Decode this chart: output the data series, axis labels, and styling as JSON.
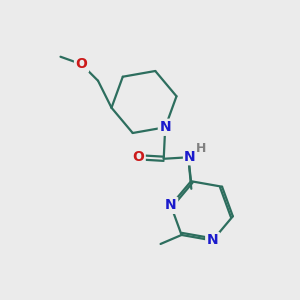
{
  "bg_color": "#ebebeb",
  "bond_color": "#2d6e5e",
  "N_color": "#1a1acc",
  "O_color": "#cc1a1a",
  "H_color": "#808080",
  "bond_width": 1.6,
  "font_size_atom": 10,
  "figsize": [
    3.0,
    3.0
  ],
  "dpi": 100,
  "xlim": [
    0,
    10
  ],
  "ylim": [
    0,
    10
  ]
}
